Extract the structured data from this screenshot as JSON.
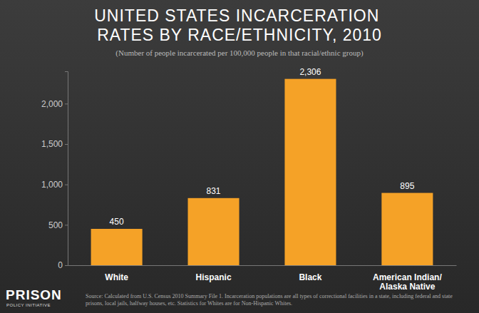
{
  "chart_data": {
    "type": "bar",
    "title": "UNITED STATES INCARCERATION RATES BY RACE/ETHNICITY, 2010",
    "subtitle": "(Number of people incarcerated per 100,000 people in that racial/ethnic group)",
    "categories": [
      "White",
      "Hispanic",
      "Black",
      "American Indian/Alaska Native"
    ],
    "values": [
      450,
      831,
      2306,
      895
    ],
    "value_labels": [
      "450",
      "831",
      "2,306",
      "895"
    ],
    "data_labels": true,
    "color": "#f5a227",
    "ylim": [
      0,
      2400
    ],
    "yticks": [
      0,
      500,
      {
        "value": 1000,
        "label": "1,000"
      },
      {
        "value": 1500,
        "label": "1,500"
      },
      {
        "value": 2000,
        "label": "2,000"
      }
    ],
    "grid": false,
    "annotations": [
      "PRISON",
      "POLICY INITIATIVE"
    ],
    "source": "Source: Calculated from U.S. Census 2010 Summary File 1. Incarceration populations are all types of correctional facilities in a state, including federal and state prisons, local jails, halfway houses, etc. Statistics for Whites are for Non-Hispanic Whites."
  }
}
